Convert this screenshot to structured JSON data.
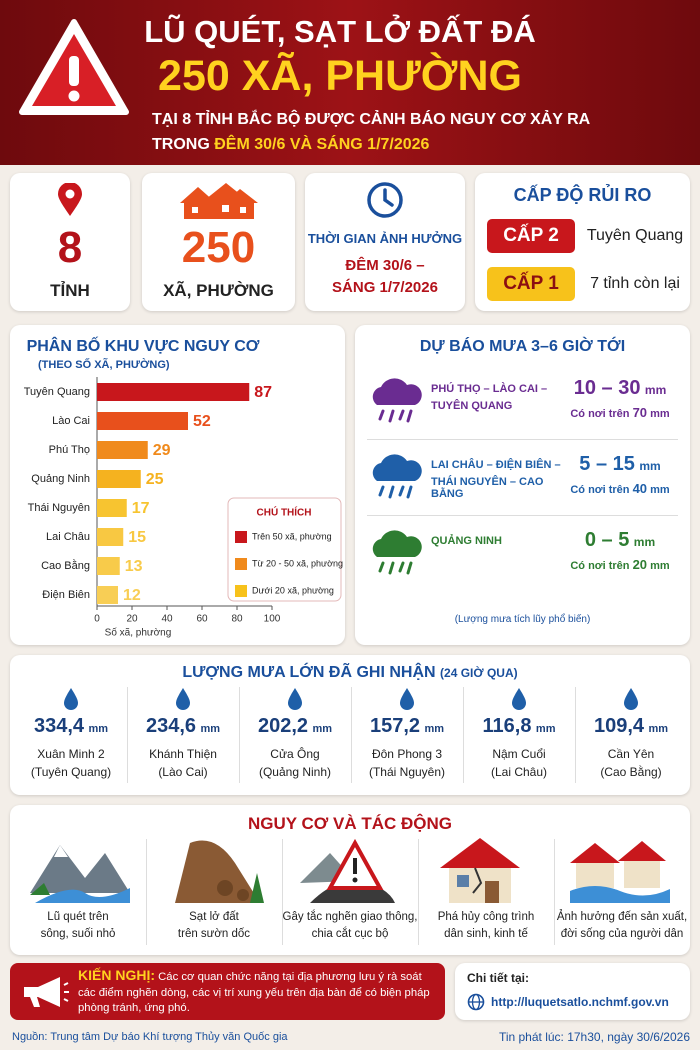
{
  "header": {
    "line1": "LŨ QUÉT, SẠT LỞ ĐẤT ĐÁ",
    "line2": "250 XÃ, PHƯỜNG",
    "line3": "TẠI 8 TỈNH BẮC BỘ ĐƯỢC CẢNH BÁO NGUY CƠ XẢY RA",
    "line4_prefix": "TRONG",
    "line4_highlight": "ĐÊM 30/6 VÀ SÁNG 1/7/2026"
  },
  "stats": [
    {
      "value": 8,
      "label": "TỈNH"
    },
    {
      "value": 250,
      "label": "XÃ, PHƯỜNG"
    }
  ],
  "time": {
    "title": "THỜI GIAN ẢNH HƯỞNG",
    "line1": "ĐÊM 30/6 –",
    "line2": "SÁNG 1/7/2026"
  },
  "risk": {
    "title": "CẤP ĐỘ RỦI RO",
    "levels": [
      {
        "level": "CẤP 2",
        "area": "Tuyên Quang",
        "color": "#c8171c",
        "text_color": "#ffffff"
      },
      {
        "level": "CẤP 1",
        "area": "7 tỉnh còn lại",
        "color": "#f7c21b",
        "text_color": "#8b0f12"
      }
    ]
  },
  "chart_data": {
    "type": "bar",
    "orientation": "horizontal",
    "title": "PHÂN BỐ KHU VỰC NGUY CƠ",
    "subtitle": "(THEO SỐ XÃ, PHƯỜNG)",
    "x_label": "Số xã, phường",
    "categories": [
      "Tuyên Quang",
      "Lào Cai",
      "Phú Thọ",
      "Quảng Ninh",
      "Thái Nguyên",
      "Lai Châu",
      "Cao Bằng",
      "Điện Biên"
    ],
    "values": [
      87,
      52,
      29,
      25,
      17,
      15,
      13,
      12
    ],
    "colors": [
      "#c8171c",
      "#e8501c",
      "#f08a1c",
      "#f5b21f",
      "#f7c430",
      "#f8c842",
      "#f8cb4a",
      "#f8ce55"
    ],
    "xlim": [
      0,
      100
    ],
    "xticks": [
      0,
      20,
      40,
      60,
      80,
      100
    ],
    "legend": {
      "title": "CHÚ THÍCH",
      "items": [
        {
          "label": "Trên 50 xã, phường",
          "color": "#c8171c"
        },
        {
          "label": "Từ 20 - 50 xã, phường",
          "color": "#f08a1c"
        },
        {
          "label": "Dưới 20 xã, phường",
          "color": "#f7c21b"
        }
      ]
    }
  },
  "forecast": {
    "title": "DỰ BÁO MƯA 3–6 GIỜ TỚI",
    "unit": "mm",
    "note": "Có nơi trên",
    "items": [
      {
        "area_line1": "PHÚ THỌ – LÀO CAI –",
        "area_line2": "TUYÊN QUANG",
        "range": "10 – 30",
        "note_value": "70",
        "color": "#6a2c91"
      },
      {
        "area_line1": "LAI CHÂU – ĐIỆN BIÊN –",
        "area_line2": "THÁI NGUYÊN – CAO BẰNG",
        "range": "5 – 15",
        "note_value": "40",
        "color": "#1f5fa8"
      },
      {
        "area_line1": "QUẢNG NINH",
        "area_line2": "",
        "range": "0 – 5",
        "note_value": "20",
        "color": "#2e7d32"
      }
    ],
    "footnote": "(Lượng mưa tích lũy phổ biến)"
  },
  "rainfall": {
    "title": "LƯỢNG MƯA LỚN ĐÃ GHI NHẬN",
    "title_note": "(24 GIỜ QUA)",
    "unit": "mm",
    "stations": [
      {
        "value": "334,4",
        "name": "Xuân Minh 2",
        "province": "(Tuyên Quang)"
      },
      {
        "value": "234,6",
        "name": "Khánh Thiện",
        "province": "(Lào Cai)"
      },
      {
        "value": "202,2",
        "name": "Cửa Ông",
        "province": "(Quảng Ninh)"
      },
      {
        "value": "157,2",
        "name": "Đôn Phong 3",
        "province": "(Thái Nguyên)"
      },
      {
        "value": "116,8",
        "name": "Nậm Cuổi",
        "province": "(Lai Châu)"
      },
      {
        "value": "109,4",
        "name": "Cần Yên",
        "province": "(Cao Bằng)"
      }
    ]
  },
  "impacts": {
    "title": "NGUY CƠ VÀ TÁC ĐỘNG",
    "items": [
      {
        "line1": "Lũ quét trên",
        "line2": "sông, suối nhỏ"
      },
      {
        "line1": "Sạt lở đất",
        "line2": "trên sườn dốc"
      },
      {
        "line1": "Gây tắc nghẽn giao thông,",
        "line2": "chia cắt cục bộ"
      },
      {
        "line1": "Phá hủy công trình",
        "line2": "dân sinh, kinh tế"
      },
      {
        "line1": "Ảnh hưởng đến sản xuất,",
        "line2": "đời sống của người dân"
      }
    ]
  },
  "recommendation": {
    "label": "KIẾN NGHỊ:",
    "text": "Các cơ quan chức năng tại địa phương lưu ý rà soát các điểm nghẽn dòng, các vị trí xung yếu trên địa bàn để có biện pháp phòng tránh, ứng phó."
  },
  "details": {
    "label": "Chi tiết tại:",
    "url": "http://luquetsatlo.nchmf.gov.vn"
  },
  "footer": {
    "source": "Nguồn: Trung tâm Dự báo Khí tượng Thủy văn Quốc gia",
    "issued": "Tin phát lúc: 17h30, ngày 30/6/2026"
  }
}
